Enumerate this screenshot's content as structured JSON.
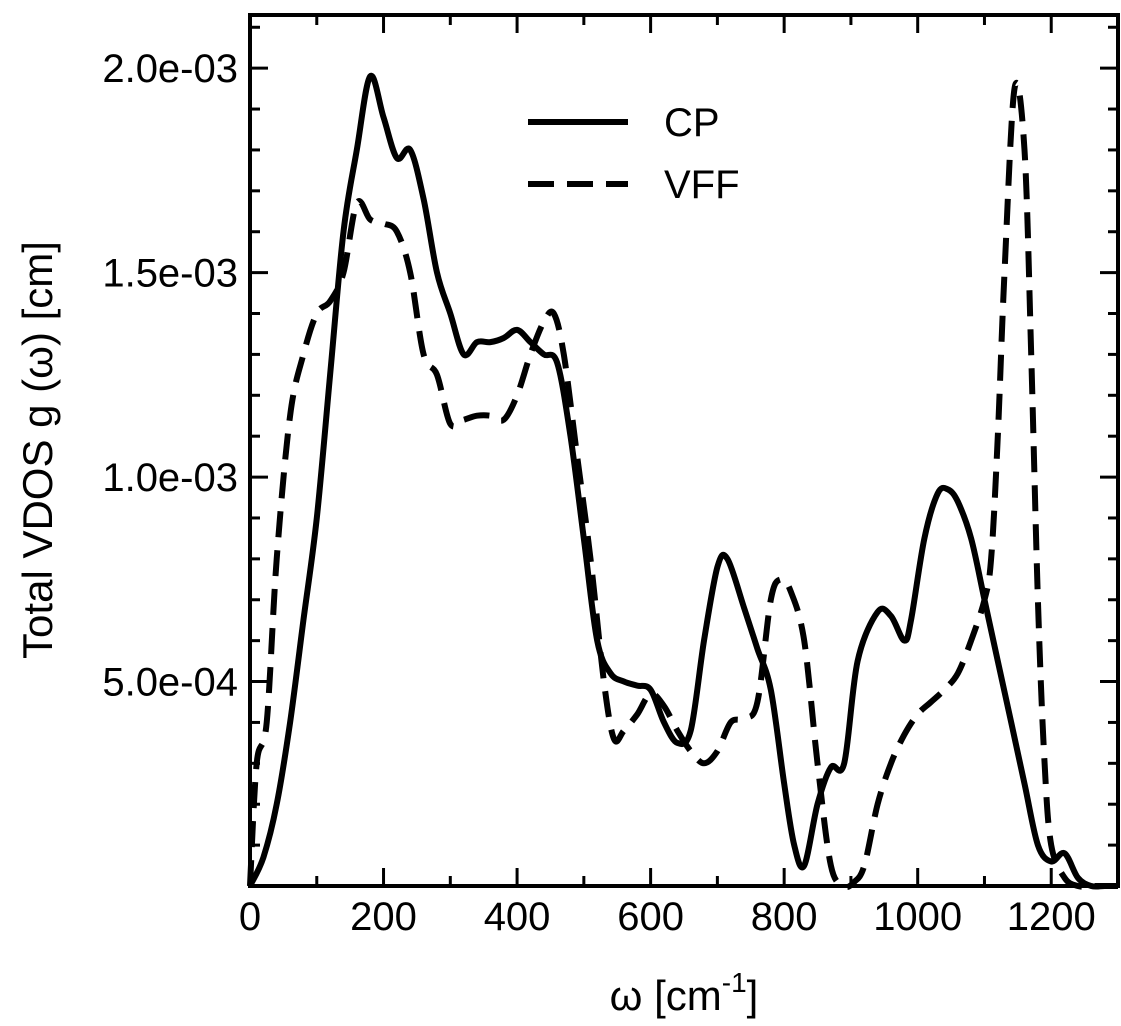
{
  "chart_data": {
    "type": "line",
    "title": "",
    "xlabel": "ω [cm",
    "xlabel_sup": "-1",
    "xlabel_suffix": "]",
    "ylabel": "Total VDOS  g (ω) [cm]",
    "xlim": [
      0,
      1300
    ],
    "ylim": [
      0,
      0.00213
    ],
    "grid": false,
    "legend_position": "top-center",
    "x_ticks": [
      0,
      200,
      400,
      600,
      800,
      1000,
      1200
    ],
    "x_tick_labels": [
      "0",
      "200",
      "400",
      "600",
      "800",
      "1000",
      "1200"
    ],
    "y_ticks": [
      0.0005,
      0.001,
      0.0015,
      0.002
    ],
    "y_tick_labels": [
      "5.0e-04",
      "1.0e-03",
      "1.5e-03",
      "2.0e-03"
    ],
    "series": [
      {
        "name": "CP",
        "style": "solid",
        "color": "#000000",
        "x": [
          0,
          20,
          40,
          60,
          80,
          100,
          120,
          140,
          160,
          180,
          200,
          220,
          240,
          260,
          280,
          300,
          320,
          340,
          360,
          380,
          400,
          420,
          440,
          460,
          480,
          500,
          520,
          540,
          560,
          580,
          600,
          620,
          640,
          660,
          680,
          700,
          715,
          740,
          760,
          780,
          800,
          815,
          830,
          850,
          870,
          890,
          910,
          940,
          960,
          980,
          990,
          1010,
          1030,
          1045,
          1060,
          1080,
          1100,
          1120,
          1140,
          1160,
          1180,
          1200,
          1220,
          1240,
          1260,
          1280,
          1300
        ],
        "y": [
          0.0,
          7e-05,
          0.0002,
          0.0004,
          0.00065,
          0.0009,
          0.00125,
          0.0016,
          0.0018,
          0.00198,
          0.00188,
          0.00178,
          0.0018,
          0.00168,
          0.0015,
          0.0014,
          0.0013,
          0.00133,
          0.00133,
          0.00134,
          0.00136,
          0.00133,
          0.0013,
          0.00128,
          0.0011,
          0.00085,
          0.0006,
          0.00052,
          0.0005,
          0.00049,
          0.00048,
          0.0004,
          0.00035,
          0.00038,
          0.0006,
          0.00078,
          0.0008,
          0.00068,
          0.00058,
          0.00048,
          0.00025,
          0.0001,
          5e-05,
          0.0002,
          0.00029,
          0.0003,
          0.00055,
          0.00067,
          0.00066,
          0.0006,
          0.00065,
          0.00085,
          0.00096,
          0.00097,
          0.00094,
          0.00085,
          0.0007,
          0.00055,
          0.0004,
          0.00025,
          0.0001,
          6e-05,
          8e-05,
          2e-05,
          0.0,
          0.0,
          0.0
        ]
      },
      {
        "name": "VFF",
        "style": "dashed",
        "color": "#000000",
        "x": [
          0,
          10,
          25,
          40,
          60,
          80,
          100,
          120,
          140,
          160,
          180,
          200,
          220,
          240,
          260,
          280,
          300,
          320,
          340,
          360,
          380,
          400,
          420,
          440,
          455,
          470,
          490,
          510,
          530,
          545,
          560,
          580,
          600,
          620,
          640,
          660,
          680,
          700,
          720,
          740,
          760,
          780,
          795,
          810,
          830,
          850,
          870,
          890,
          905,
          920,
          940,
          960,
          980,
          1000,
          1020,
          1040,
          1060,
          1080,
          1100,
          1110,
          1120,
          1130,
          1145,
          1160,
          1170,
          1180,
          1190,
          1200,
          1220,
          1240,
          1260,
          1300
        ],
        "y": [
          0.0,
          0.0003,
          0.0004,
          0.0008,
          0.00115,
          0.0013,
          0.0014,
          0.00143,
          0.0015,
          0.00167,
          0.00163,
          0.00162,
          0.0016,
          0.0015,
          0.0013,
          0.00125,
          0.00113,
          0.00114,
          0.00115,
          0.00115,
          0.00114,
          0.0012,
          0.0013,
          0.00138,
          0.0014,
          0.0013,
          0.00105,
          0.0008,
          0.0005,
          0.00036,
          0.00038,
          0.00042,
          0.00047,
          0.00044,
          0.00038,
          0.00033,
          0.0003,
          0.00033,
          0.0004,
          0.00041,
          0.00045,
          0.0007,
          0.00075,
          0.00072,
          0.0006,
          0.0003,
          5e-05,
          0.0,
          1e-05,
          5e-05,
          0.0002,
          0.0003,
          0.00037,
          0.00042,
          0.00045,
          0.00048,
          0.00052,
          0.0006,
          0.0007,
          0.0008,
          0.0011,
          0.0015,
          0.00195,
          0.0018,
          0.0013,
          0.0007,
          0.0003,
          0.0001,
          2e-05,
          0.0,
          0.0,
          0.0
        ]
      }
    ]
  }
}
